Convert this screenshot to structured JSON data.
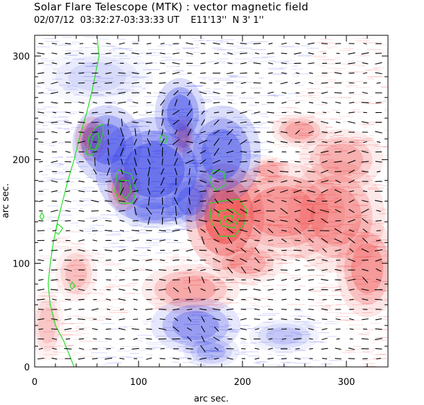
{
  "header": {
    "title": "Solar Flare Telescope (MTK) : vector magnetic field",
    "subtitle": "02/07/12  03:32:27-03:33:33 UT    E11'13''  N 3' 1''"
  },
  "chart_data": {
    "type": "heatmap",
    "title": "Solar Flare Telescope (MTK) : vector magnetic field",
    "subtitle": "02/07/12  03:32:27-03:33:33 UT    E11'13''  N 3' 1''",
    "xlabel": "arc sec.",
    "ylabel": "arc sec.",
    "xlim": [
      0,
      340
    ],
    "ylim": [
      0,
      320
    ],
    "x_ticks": [
      0,
      100,
      200,
      300
    ],
    "y_ticks": [
      0,
      100,
      200,
      300
    ],
    "grid": false,
    "colors": {
      "positive_polarity": "#ee4040",
      "negative_polarity": "#3a46e6",
      "contour": "#22dd22",
      "vector": "#000000",
      "background": "#ffffff"
    },
    "positive_regions": [
      {
        "x": 183,
        "y": 145,
        "rx": 28,
        "ry": 38,
        "strength": 1.0
      },
      {
        "x": 86,
        "y": 172,
        "rx": 12,
        "ry": 16,
        "strength": 0.95
      },
      {
        "x": 55,
        "y": 220,
        "rx": 12,
        "ry": 16,
        "strength": 0.9
      },
      {
        "x": 143,
        "y": 222,
        "rx": 8,
        "ry": 15,
        "strength": 0.7
      },
      {
        "x": 238,
        "y": 150,
        "rx": 45,
        "ry": 35,
        "strength": 0.6
      },
      {
        "x": 290,
        "y": 145,
        "rx": 35,
        "ry": 40,
        "strength": 0.55
      },
      {
        "x": 320,
        "y": 95,
        "rx": 22,
        "ry": 35,
        "strength": 0.6
      },
      {
        "x": 295,
        "y": 200,
        "rx": 30,
        "ry": 22,
        "strength": 0.45
      },
      {
        "x": 255,
        "y": 228,
        "rx": 20,
        "ry": 12,
        "strength": 0.5
      },
      {
        "x": 150,
        "y": 75,
        "rx": 35,
        "ry": 18,
        "strength": 0.5
      },
      {
        "x": 205,
        "y": 100,
        "rx": 25,
        "ry": 15,
        "strength": 0.45
      },
      {
        "x": 40,
        "y": 90,
        "rx": 15,
        "ry": 20,
        "strength": 0.35
      },
      {
        "x": 12,
        "y": 40,
        "rx": 12,
        "ry": 25,
        "strength": 0.3
      },
      {
        "x": 225,
        "y": 190,
        "rx": 15,
        "ry": 10,
        "strength": 0.35
      }
    ],
    "negative_regions": [
      {
        "x": 115,
        "y": 190,
        "rx": 42,
        "ry": 38,
        "strength": 1.0
      },
      {
        "x": 140,
        "y": 245,
        "rx": 18,
        "ry": 25,
        "strength": 0.85
      },
      {
        "x": 70,
        "y": 215,
        "rx": 25,
        "ry": 28,
        "strength": 0.85
      },
      {
        "x": 180,
        "y": 205,
        "rx": 28,
        "ry": 35,
        "strength": 0.8
      },
      {
        "x": 150,
        "y": 160,
        "rx": 18,
        "ry": 20,
        "strength": 0.7
      },
      {
        "x": 155,
        "y": 40,
        "rx": 32,
        "ry": 20,
        "strength": 0.6
      },
      {
        "x": 115,
        "y": 150,
        "rx": 28,
        "ry": 12,
        "strength": 0.5
      },
      {
        "x": 170,
        "y": 15,
        "rx": 20,
        "ry": 12,
        "strength": 0.4
      },
      {
        "x": 240,
        "y": 30,
        "rx": 25,
        "ry": 12,
        "strength": 0.3
      },
      {
        "x": 60,
        "y": 280,
        "rx": 40,
        "ry": 20,
        "strength": 0.2
      }
    ],
    "contours": [
      {
        "points": [
          [
            50,
            205
          ],
          [
            52,
            222
          ],
          [
            60,
            232
          ],
          [
            66,
            234
          ],
          [
            66,
            226
          ],
          [
            62,
            214
          ],
          [
            55,
            204
          ],
          [
            50,
            205
          ]
        ]
      },
      {
        "points": [
          [
            53,
            210
          ],
          [
            56,
            222
          ],
          [
            61,
            226
          ],
          [
            62,
            218
          ],
          [
            58,
            210
          ],
          [
            53,
            210
          ]
        ]
      },
      {
        "points": [
          [
            80,
            190
          ],
          [
            77,
            170
          ],
          [
            82,
            158
          ],
          [
            94,
            158
          ],
          [
            98,
            170
          ],
          [
            93,
            186
          ],
          [
            80,
            190
          ]
        ]
      },
      {
        "points": [
          [
            83,
            180
          ],
          [
            82,
            168
          ],
          [
            88,
            162
          ],
          [
            93,
            170
          ],
          [
            91,
            180
          ],
          [
            83,
            180
          ]
        ]
      },
      {
        "points": [
          [
            168,
            158
          ],
          [
            170,
            140
          ],
          [
            178,
            126
          ],
          [
            192,
            126
          ],
          [
            202,
            138
          ],
          [
            204,
            152
          ],
          [
            196,
            162
          ],
          [
            180,
            160
          ],
          [
            168,
            158
          ]
        ]
      },
      {
        "points": [
          [
            176,
            150
          ],
          [
            180,
            136
          ],
          [
            192,
            134
          ],
          [
            198,
            146
          ],
          [
            190,
            152
          ],
          [
            176,
            150
          ]
        ]
      },
      {
        "points": [
          [
            182,
            145
          ],
          [
            186,
            138
          ],
          [
            192,
            140
          ],
          [
            190,
            146
          ],
          [
            182,
            145
          ]
        ]
      },
      {
        "points": [
          [
            168,
            180
          ],
          [
            172,
            190
          ],
          [
            182,
            188
          ],
          [
            184,
            176
          ],
          [
            174,
            170
          ],
          [
            168,
            180
          ]
        ]
      },
      {
        "points": [
          [
            120,
            218
          ],
          [
            122,
            224
          ],
          [
            128,
            222
          ],
          [
            126,
            216
          ],
          [
            120,
            218
          ]
        ]
      },
      {
        "points": [
          [
            60,
            320
          ],
          [
            62,
            300
          ],
          [
            58,
            280
          ],
          [
            55,
            265
          ],
          [
            50,
            245
          ],
          [
            44,
            225
          ],
          [
            38,
            200
          ],
          [
            32,
            180
          ],
          [
            27,
            160
          ],
          [
            22,
            140
          ],
          [
            18,
            120
          ],
          [
            15,
            100
          ],
          [
            13,
            80
          ],
          [
            15,
            60
          ],
          [
            20,
            40
          ],
          [
            28,
            25
          ],
          [
            34,
            10
          ],
          [
            38,
            0
          ]
        ]
      },
      {
        "points": [
          [
            20,
            130
          ],
          [
            22,
            138
          ],
          [
            27,
            134
          ],
          [
            23,
            128
          ],
          [
            20,
            130
          ]
        ]
      },
      {
        "points": [
          [
            34,
            78
          ],
          [
            36,
            82
          ],
          [
            39,
            78
          ],
          [
            36,
            75
          ],
          [
            34,
            78
          ]
        ]
      },
      {
        "points": [
          [
            5,
            145
          ],
          [
            7,
            149
          ],
          [
            9,
            145
          ],
          [
            7,
            142
          ],
          [
            5,
            145
          ]
        ]
      }
    ]
  }
}
